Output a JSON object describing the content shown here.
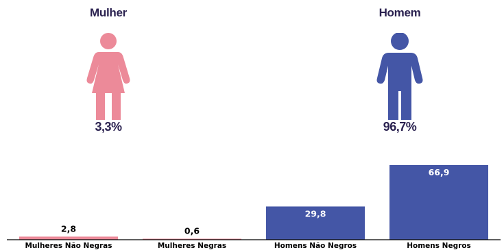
{
  "colors": {
    "female": "#ec8a99",
    "male": "#4456a6",
    "dark_text": "#2b2250"
  },
  "female": {
    "title": "Mulher",
    "percent": "3,3%",
    "icon": "female-person-icon"
  },
  "male": {
    "title": "Homem",
    "percent": "96,7%",
    "icon": "male-person-icon"
  },
  "chart_data": {
    "type": "bar",
    "categories": [
      "Mulheres Não Negras",
      "Mulheres Negras",
      "Homens Não Negros",
      "Homens Negros"
    ],
    "values": [
      2.8,
      0.6,
      29.8,
      66.9
    ],
    "value_labels": [
      "2,8",
      "0,6",
      "29,8",
      "66,9"
    ],
    "bar_colors": [
      "#ec8a99",
      "#ec8a99",
      "#4456a6",
      "#4456a6"
    ],
    "ylim": [
      0,
      70
    ],
    "grid": false
  }
}
